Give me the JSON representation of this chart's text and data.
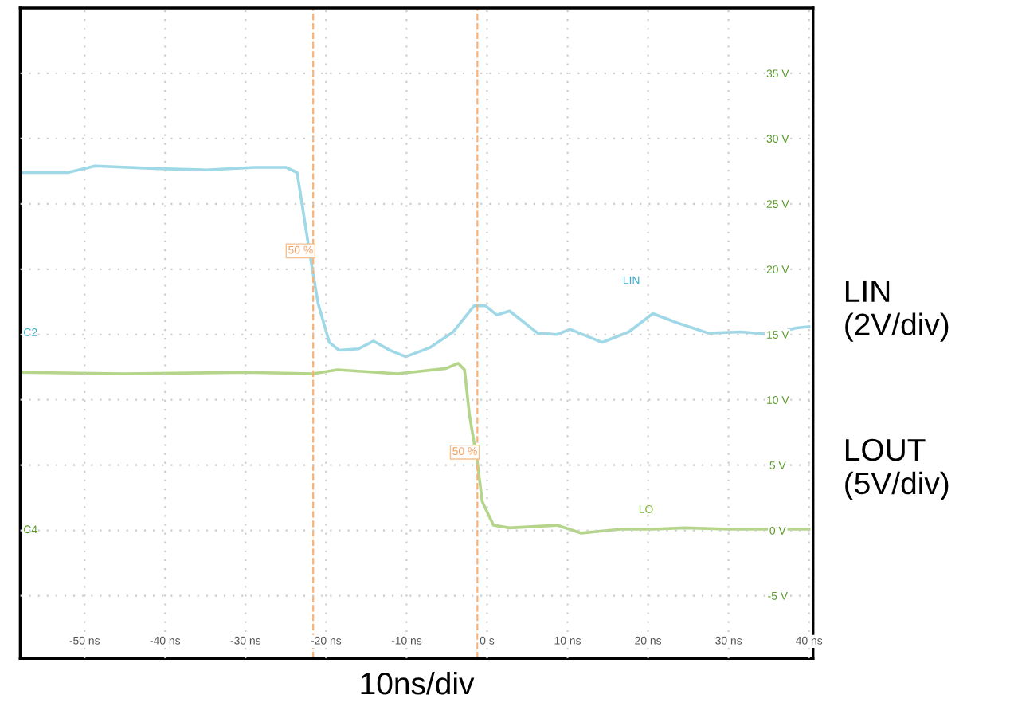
{
  "chart_data": {
    "type": "line",
    "xlabel": "10ns/div",
    "xlim": [
      -58,
      40.5
    ],
    "ylim": [
      -9.8,
      40
    ],
    "xticks": [
      {
        "value": -50,
        "label": "-50 ns"
      },
      {
        "value": -40,
        "label": "-40 ns"
      },
      {
        "value": -30,
        "label": "-30 ns"
      },
      {
        "value": -20,
        "label": "-20 ns"
      },
      {
        "value": -10,
        "label": "-10 ns"
      },
      {
        "value": 0,
        "label": "0 s"
      },
      {
        "value": 10,
        "label": "10 ns"
      },
      {
        "value": 20,
        "label": "20 ns"
      },
      {
        "value": 30,
        "label": "30 ns"
      },
      {
        "value": 40,
        "label": "40 ns"
      }
    ],
    "yticks": [
      {
        "value": -5,
        "label": "-5 V"
      },
      {
        "value": 0,
        "label": "0 V"
      },
      {
        "value": 5,
        "label": "5 V"
      },
      {
        "value": 10,
        "label": "10 V"
      },
      {
        "value": 15,
        "label": "15 V"
      },
      {
        "value": 20,
        "label": "20 V"
      },
      {
        "value": 25,
        "label": "25 V"
      },
      {
        "value": 30,
        "label": "30 V"
      },
      {
        "value": 35,
        "label": "35 V"
      }
    ],
    "grid": true,
    "legend": false,
    "marker": "none",
    "line_style": "solid",
    "series": [
      {
        "color": "#9fd8e6",
        "x": [
          -58.0,
          -52.1,
          -48.7,
          -40.8,
          -34.9,
          -28.9,
          -25.0,
          -23.6,
          -22.0,
          -21.0,
          -19.6,
          -18.4,
          -16.0,
          -14.1,
          -12.1,
          -10.1,
          -7.1,
          -4.2,
          -1.6,
          -0.2,
          1.2,
          2.8,
          6.3,
          8.7,
          10.3,
          14.3,
          17.6,
          20.6,
          23.6,
          27.5,
          31.5,
          35.4,
          38.4,
          40.0
        ],
        "values": [
          27.4,
          27.4,
          27.9,
          27.7,
          27.6,
          27.8,
          27.8,
          27.4,
          21.1,
          17.4,
          14.4,
          13.8,
          13.9,
          14.5,
          13.8,
          13.3,
          14.0,
          15.2,
          17.2,
          17.2,
          16.5,
          16.8,
          15.1,
          15.0,
          15.4,
          14.4,
          15.2,
          16.6,
          15.9,
          15.1,
          15.2,
          15.0,
          15.5,
          15.6
        ]
      },
      {
        "color": "#b5d68a",
        "x": [
          -58.0,
          -45.0,
          -30.0,
          -21.6,
          -18.6,
          -11.1,
          -5.1,
          -3.6,
          -2.8,
          -2.2,
          -1.2,
          -0.6,
          0.8,
          2.8,
          8.7,
          11.7,
          16.6,
          20.6,
          24.6,
          30.0,
          40.0
        ],
        "values": [
          12.1,
          12.0,
          12.1,
          12.0,
          12.3,
          12.0,
          12.4,
          12.8,
          12.3,
          8.9,
          5.2,
          2.2,
          0.4,
          0.2,
          0.4,
          -0.2,
          0.1,
          0.1,
          0.2,
          0.1,
          0.1
        ]
      }
    ],
    "ref_lines": [
      {
        "axis": "x",
        "value": -21.6,
        "color": "#f5b27a",
        "line_style": "dashed"
      },
      {
        "axis": "x",
        "value": -1.2,
        "color": "#f5b27a",
        "line_style": "dashed"
      }
    ],
    "annotations": [
      {
        "text": "50 %",
        "x": -21.6,
        "y": 21.4
      },
      {
        "text": "50 %",
        "x": -1.2,
        "y": 6.0
      },
      "LIN",
      "LO",
      "C2",
      "C4",
      "LIN\n(2V/div)",
      "LOUT\n(5V/div)"
    ]
  }
}
